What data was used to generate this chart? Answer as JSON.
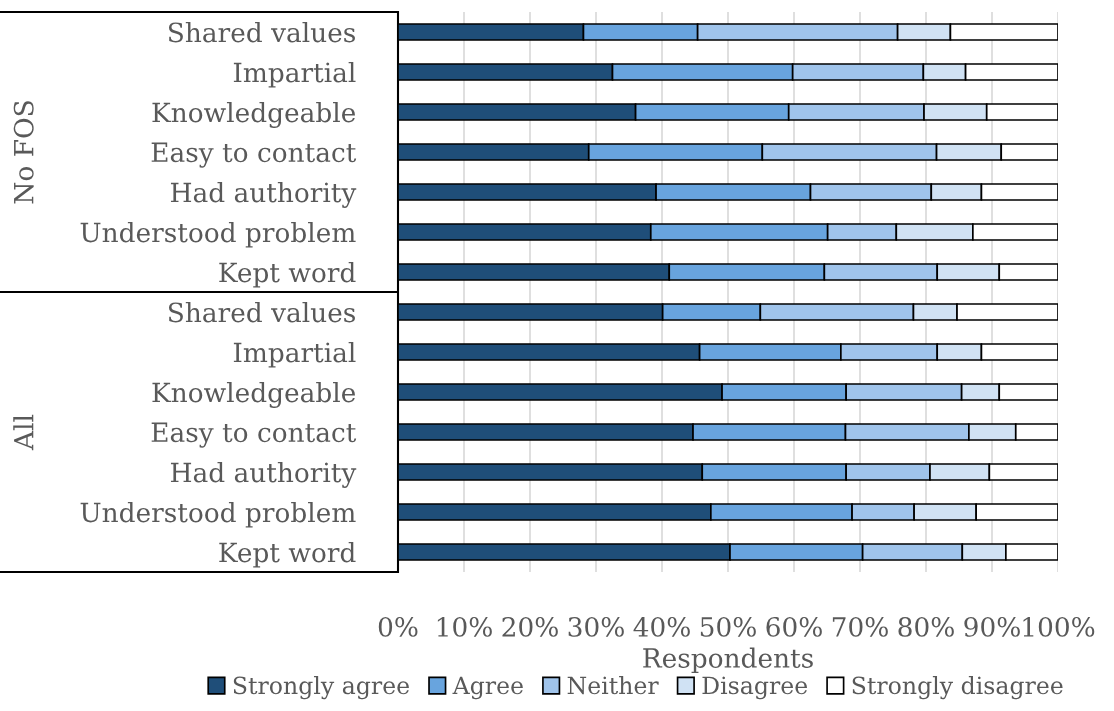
{
  "chart_data": {
    "type": "bar",
    "orientation": "horizontal",
    "stacked": true,
    "categories": [
      "Shared values",
      "Impartial",
      "Knowledgeable",
      "Easy to contact",
      "Had authority",
      "Understood problem",
      "Kept word",
      "Shared values",
      "Impartial",
      "Knowledgeable",
      "Easy to contact",
      "Had authority",
      "Understood problem",
      "Kept word"
    ],
    "series": [
      {
        "name": "Strongly agree",
        "color": "#1f4e79",
        "values": [
          28.1,
          32.5,
          36.0,
          28.9,
          39.1,
          38.3,
          41.1,
          40.1,
          45.7,
          49.1,
          44.7,
          46.1,
          47.4,
          50.3
        ]
      },
      {
        "name": "Agree",
        "color": "#68a4de",
        "values": [
          17.3,
          27.3,
          23.2,
          26.3,
          23.4,
          26.8,
          23.5,
          14.8,
          21.4,
          18.8,
          23.1,
          21.8,
          21.4,
          20.1
        ]
      },
      {
        "name": "Neither",
        "color": "#a0c4eb",
        "values": [
          30.3,
          19.8,
          20.5,
          26.4,
          18.3,
          10.4,
          17.1,
          23.2,
          14.6,
          17.5,
          18.7,
          12.7,
          9.4,
          15.1
        ]
      },
      {
        "name": "Disagree",
        "color": "#d0e2f4",
        "values": [
          8.0,
          6.4,
          9.5,
          9.8,
          7.6,
          11.6,
          9.4,
          6.6,
          6.7,
          5.7,
          7.1,
          9.0,
          9.4,
          6.6
        ]
      },
      {
        "name": "Strongly disagree",
        "color": "#ffffff",
        "values": [
          16.3,
          14.0,
          10.8,
          8.6,
          11.6,
          12.9,
          8.9,
          15.3,
          11.6,
          8.9,
          6.4,
          10.4,
          12.4,
          7.9
        ]
      }
    ],
    "xlabel": "Respondents",
    "xlim": [
      0,
      100
    ],
    "xticks": [
      {
        "value": 0,
        "label": "0%"
      },
      {
        "value": 10,
        "label": "10%"
      },
      {
        "value": 20,
        "label": "20%"
      },
      {
        "value": 30,
        "label": "30%"
      },
      {
        "value": 40,
        "label": "40%"
      },
      {
        "value": 50,
        "label": "50%"
      },
      {
        "value": 60,
        "label": "60%"
      },
      {
        "value": 70,
        "label": "70%"
      },
      {
        "value": 80,
        "label": "80%"
      },
      {
        "value": 90,
        "label": "90%"
      },
      {
        "value": 100,
        "label": "100%"
      }
    ],
    "annotations": [
      "No FOS",
      "All"
    ],
    "grid": "x",
    "legend": "bottom"
  }
}
